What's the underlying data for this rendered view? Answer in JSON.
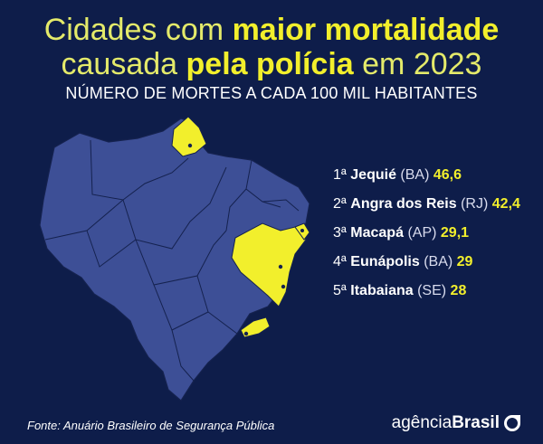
{
  "title": {
    "line1_prefix": "Cidades com ",
    "line1_bold": "maior mortalidade",
    "line2_prefix": "causada ",
    "line2_bold": "pela polícia",
    "line2_suffix": " em 2023"
  },
  "subtitle": "NÚMERO DE MORTES A CADA 100 MIL HABITANTES",
  "ranking": [
    {
      "position": "1ª",
      "city": "Jequié",
      "state": "(BA)",
      "value": "46,6"
    },
    {
      "position": "2ª",
      "city": "Angra dos Reis",
      "state": "(RJ)",
      "value": "42,4"
    },
    {
      "position": "3ª",
      "city": "Macapá",
      "state": "(AP)",
      "value": "29,1"
    },
    {
      "position": "4ª",
      "city": "Eunápolis",
      "state": "(BA)",
      "value": "29"
    },
    {
      "position": "5ª",
      "city": "Itabaiana",
      "state": "(SE)",
      "value": "28"
    }
  ],
  "source": "Fonte: Anuário Brasileiro de Segurança Pública",
  "brand": {
    "prefix": "agência",
    "bold": "Brasil"
  },
  "colors": {
    "background": "#0e1d4a",
    "map_fill": "#3d4f96",
    "map_border": "#15224f",
    "highlight": "#f2ef2c",
    "text": "#ffffff"
  },
  "highlighted_states": [
    "AP",
    "BA",
    "SE",
    "RJ"
  ]
}
